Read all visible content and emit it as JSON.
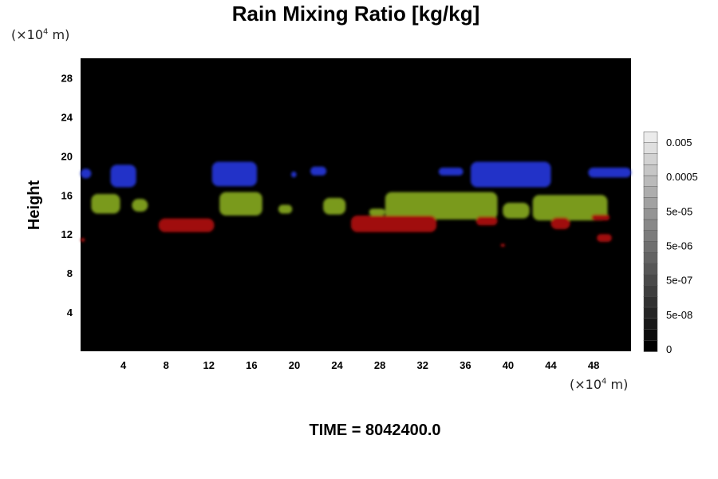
{
  "chart_data": {
    "type": "heatmap",
    "title": "Rain Mixing Ratio [kg/kg]",
    "xlabel": "",
    "ylabel": "Height",
    "x_unit_label": "(×10⁴ m)",
    "y_unit_label": "(×10⁴ m)",
    "x_unit_text": "(×10",
    "x_unit_exp": "4",
    "x_unit_tail": " m)",
    "xlim": [
      0,
      51.5
    ],
    "ylim": [
      0,
      30
    ],
    "x_ticks": [
      4,
      8,
      12,
      16,
      20,
      24,
      28,
      32,
      36,
      40,
      44,
      48
    ],
    "y_ticks": [
      4,
      8,
      12,
      16,
      20,
      24,
      28
    ],
    "background_color": "#000000",
    "colorbar": {
      "labels": [
        "0.005",
        "0.0005",
        "5e-05",
        "5e-06",
        "5e-07",
        "5e-08",
        "0"
      ]
    },
    "features": [
      {
        "color": "#2233c8",
        "x": [
          0,
          1
        ],
        "y": [
          17.7,
          18.7
        ]
      },
      {
        "color": "#2233c8",
        "x": [
          2.8,
          5.2
        ],
        "y": [
          16.8,
          19.1
        ]
      },
      {
        "color": "#2233c8",
        "x": [
          12.3,
          16.5
        ],
        "y": [
          16.9,
          19.4
        ]
      },
      {
        "color": "#2233c8",
        "x": [
          19.7,
          20.2
        ],
        "y": [
          17.8,
          18.4
        ]
      },
      {
        "color": "#2233c8",
        "x": [
          21.5,
          23
        ],
        "y": [
          18,
          18.9
        ]
      },
      {
        "color": "#2233c8",
        "x": [
          33.5,
          35.8
        ],
        "y": [
          18,
          18.8
        ]
      },
      {
        "color": "#2233c8",
        "x": [
          36.5,
          44
        ],
        "y": [
          16.8,
          19.4
        ]
      },
      {
        "color": "#2233c8",
        "x": [
          47.5,
          51.5
        ],
        "y": [
          17.8,
          18.8
        ]
      },
      {
        "color": "#7a9a1e",
        "x": [
          1,
          3.7
        ],
        "y": [
          14.1,
          16.1
        ]
      },
      {
        "color": "#7a9a1e",
        "x": [
          4.8,
          6.3
        ],
        "y": [
          14.3,
          15.6
        ]
      },
      {
        "color": "#7a9a1e",
        "x": [
          13,
          17
        ],
        "y": [
          13.9,
          16.3
        ]
      },
      {
        "color": "#7a9a1e",
        "x": [
          18.5,
          19.8
        ],
        "y": [
          14.1,
          15
        ]
      },
      {
        "color": "#7a9a1e",
        "x": [
          22.7,
          24.8
        ],
        "y": [
          14,
          15.7
        ]
      },
      {
        "color": "#7a9a1e",
        "x": [
          27,
          28.5
        ],
        "y": [
          13.9,
          14.6
        ]
      },
      {
        "color": "#7a9a1e",
        "x": [
          28.5,
          39
        ],
        "y": [
          13.5,
          16.3
        ]
      },
      {
        "color": "#7a9a1e",
        "x": [
          39.5,
          42
        ],
        "y": [
          13.6,
          15.2
        ]
      },
      {
        "color": "#7a9a1e",
        "x": [
          42.3,
          49.3
        ],
        "y": [
          13.4,
          16
        ]
      },
      {
        "color": "#a00c0c",
        "x": [
          7.3,
          12.5
        ],
        "y": [
          12.2,
          13.6
        ]
      },
      {
        "color": "#a00c0c",
        "x": [
          25.3,
          33.3
        ],
        "y": [
          12.2,
          13.9
        ]
      },
      {
        "color": "#a00c0c",
        "x": [
          37,
          39
        ],
        "y": [
          12.9,
          13.8
        ]
      },
      {
        "color": "#a00c0c",
        "x": [
          44,
          45.8
        ],
        "y": [
          12.5,
          13.7
        ]
      },
      {
        "color": "#a00c0c",
        "x": [
          47.8,
          49.5
        ],
        "y": [
          13.4,
          14
        ]
      },
      {
        "color": "#a00c0c",
        "x": [
          0,
          0.4
        ],
        "y": [
          11.2,
          11.6
        ]
      },
      {
        "color": "#a00c0c",
        "x": [
          39.3,
          39.7
        ],
        "y": [
          10.7,
          11
        ]
      },
      {
        "color": "#a00c0c",
        "x": [
          48.3,
          49.7
        ],
        "y": [
          11.2,
          12
        ]
      }
    ],
    "time_label": "TIME = 8042400.0"
  }
}
